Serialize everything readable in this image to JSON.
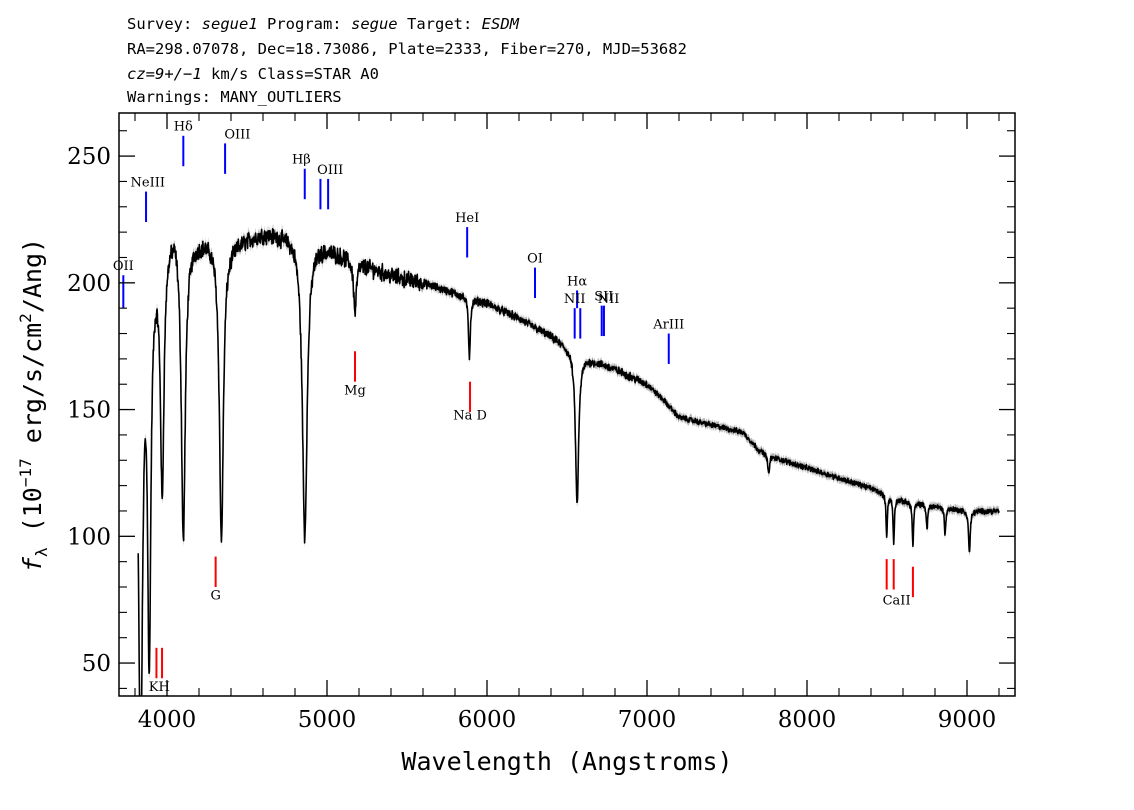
{
  "header": {
    "line1": {
      "p1": "Survey: ",
      "p1i": "segue1",
      "p2": " Program: ",
      "p2i": "segue",
      "p3": " Target: ",
      "p3i": "ESDM"
    },
    "line2": "RA=298.07078, Dec=18.73086, Plate=2333, Fiber=270, MJD=53682",
    "line3": {
      "p1i": "cz=9+/−1",
      "p2": " km/s Class=STAR A0"
    },
    "line4": "Warnings: MANY_OUTLIERS"
  },
  "colors": {
    "emission": "#0000ff",
    "absorption": "#ff0000",
    "spectrum": "#000000",
    "error": "#b0b0b0"
  },
  "chart_data": {
    "type": "line",
    "title": "",
    "xlabel": "Wavelength (Angstroms)",
    "ylabel_parts": {
      "f": "f",
      "sub": "λ",
      "rest": " (10",
      "exp1": "−17",
      "mid": " erg/s/cm",
      "exp2": "2",
      "end": "/Ang)"
    },
    "xlim": [
      3700,
      9300
    ],
    "ylim": [
      37,
      267
    ],
    "xticks": [
      4000,
      5000,
      6000,
      7000,
      8000,
      9000
    ],
    "yticks": [
      50,
      100,
      150,
      200,
      250
    ],
    "continuum": [
      [
        3800,
        182
      ],
      [
        3860,
        205
      ],
      [
        3950,
        215
      ],
      [
        4050,
        226
      ],
      [
        4150,
        218
      ],
      [
        4300,
        218
      ],
      [
        4400,
        216
      ],
      [
        4600,
        220
      ],
      [
        4800,
        219
      ],
      [
        5000,
        214
      ],
      [
        5200,
        208
      ],
      [
        5400,
        203
      ],
      [
        5600,
        200
      ],
      [
        5800,
        196
      ],
      [
        6000,
        192
      ],
      [
        6200,
        186
      ],
      [
        6400,
        179
      ],
      [
        6600,
        171
      ],
      [
        6800,
        166
      ],
      [
        7000,
        160
      ],
      [
        7100,
        154
      ],
      [
        7200,
        147
      ],
      [
        7400,
        144
      ],
      [
        7600,
        141
      ],
      [
        7700,
        134
      ],
      [
        7800,
        131
      ],
      [
        8000,
        127
      ],
      [
        8200,
        123
      ],
      [
        8400,
        119
      ],
      [
        8600,
        114
      ],
      [
        8800,
        112
      ],
      [
        9000,
        110
      ],
      [
        9200,
        110
      ]
    ],
    "absorption_features": [
      [
        3835,
        182,
        15
      ],
      [
        3889,
        148,
        12
      ],
      [
        3970,
        96,
        13
      ],
      [
        4102,
        121,
        15
      ],
      [
        4340,
        118,
        15
      ],
      [
        4861,
        117,
        18
      ],
      [
        5175,
        20,
        10
      ],
      [
        5890,
        23,
        7
      ],
      [
        6563,
        60,
        12
      ],
      [
        7760,
        8,
        6
      ],
      [
        8498,
        16,
        5
      ],
      [
        8542,
        18,
        5
      ],
      [
        8662,
        17,
        5
      ],
      [
        8750,
        10,
        5
      ],
      [
        8863,
        11,
        5
      ],
      [
        9015,
        17,
        6
      ]
    ],
    "emission_lines": [
      {
        "label": "OII",
        "wave": 3727,
        "y1": 190,
        "y2": 203
      },
      {
        "label": "NeIII",
        "wave": 3869,
        "y1": 224,
        "y2": 236
      },
      {
        "label": "Hδ",
        "wave": 4102,
        "y1": 246,
        "y2": 258
      },
      {
        "label": "OIII",
        "wave": 4363,
        "y1": 243,
        "y2": 255
      },
      {
        "label": "Hβ",
        "wave": 4861,
        "y1": 233,
        "y2": 245
      },
      {
        "label": "OIII",
        "wave": 4959,
        "y1": 229,
        "y2": 241
      },
      {
        "label": "OIII",
        "wave": 5007,
        "y1": 229,
        "y2": 241
      },
      {
        "label": "HeI",
        "wave": 5876,
        "y1": 210,
        "y2": 222
      },
      {
        "label": "OI",
        "wave": 6300,
        "y1": 194,
        "y2": 206
      },
      {
        "label": "NII",
        "wave": 6548,
        "y1": 178,
        "y2": 190
      },
      {
        "label": "Hα",
        "wave": 6563,
        "y1": 190,
        "y2": 197
      },
      {
        "label": "NII",
        "wave": 6583,
        "y1": 178,
        "y2": 190
      },
      {
        "label": "SII",
        "wave": 6717,
        "y1": 179,
        "y2": 191
      },
      {
        "label": "SII",
        "wave": 6731,
        "y1": 179,
        "y2": 191
      },
      {
        "label": "ArIII",
        "wave": 7136,
        "y1": 168,
        "y2": 180
      }
    ],
    "emission_labels": [
      {
        "text": "OII",
        "wave": 3727,
        "y": 205
      },
      {
        "text": "NeIII",
        "wave": 3880,
        "y": 238
      },
      {
        "text": "Hδ",
        "wave": 4102,
        "y": 260
      },
      {
        "text": "OIII",
        "wave": 4440,
        "y": 257
      },
      {
        "text": "Hβ",
        "wave": 4840,
        "y": 247
      },
      {
        "text": "OIII",
        "wave": 5020,
        "y": 243
      },
      {
        "text": "HeI",
        "wave": 5876,
        "y": 224
      },
      {
        "text": "OI",
        "wave": 6300,
        "y": 208
      },
      {
        "text": "NII",
        "wave": 6548,
        "y": 192
      },
      {
        "text": "Hα",
        "wave": 6563,
        "y": 199
      },
      {
        "text": "NII",
        "wave": 6760,
        "y": 192
      },
      {
        "text": "SII",
        "wave": 6730,
        "y": 193
      },
      {
        "text": "ArIII",
        "wave": 7136,
        "y": 182
      }
    ],
    "absorption_lines": [
      {
        "label": "K",
        "wave": 3934,
        "y1": 44,
        "y2": 56
      },
      {
        "label": "H",
        "wave": 3969,
        "y1": 44,
        "y2": 56
      },
      {
        "label": "G",
        "wave": 4304,
        "y1": 80,
        "y2": 92
      },
      {
        "label": "Mg",
        "wave": 5175,
        "y1": 161,
        "y2": 173
      },
      {
        "label": "Na",
        "wave": 5894,
        "y1": 149,
        "y2": 161
      },
      {
        "label": "CaII",
        "wave": 8498,
        "y1": 79,
        "y2": 91
      },
      {
        "label": "CaII",
        "wave": 8542,
        "y1": 79,
        "y2": 91
      },
      {
        "label": "CaII",
        "wave": 8662,
        "y1": 76,
        "y2": 88
      }
    ],
    "absorption_labels": [
      {
        "text": "KH",
        "wave": 3952,
        "y": 39
      },
      {
        "text": "G",
        "wave": 4304,
        "y": 75
      },
      {
        "text": "Mg",
        "wave": 5175,
        "y": 156
      },
      {
        "text": "Na  D",
        "wave": 5894,
        "y": 146
      },
      {
        "text": "CaII",
        "wave": 8560,
        "y": 73
      }
    ]
  }
}
